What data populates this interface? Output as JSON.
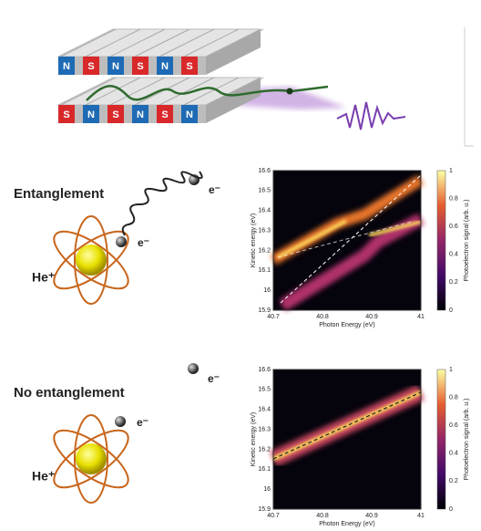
{
  "undulator": {
    "top_magnets": [
      "N",
      "S",
      "N",
      "S",
      "N",
      "S"
    ],
    "bottom_magnets": [
      "S",
      "N",
      "S",
      "N",
      "S",
      "N"
    ]
  },
  "panels": [
    {
      "label": "Entanglement",
      "electron_free": "e⁻",
      "electron_bound": "e⁻",
      "ion": "He⁺",
      "plot": {
        "ylabel": "Kinetic energy (eV)",
        "xlabel": "Photon Energy (eV)",
        "xticks": [
          "40.7",
          "40.8",
          "40.9",
          "41"
        ],
        "yticks": [
          "16.6",
          "16.5",
          "16.4",
          "16.3",
          "16.2",
          "16.1",
          "16",
          "15.9"
        ],
        "colorbar_label": "Photoelectron signal (arb. u.)",
        "colorbar_ticks": [
          "1",
          "0.8",
          "0.6",
          "0.4",
          "0.2",
          "0"
        ]
      }
    },
    {
      "label": "No entanglement",
      "electron_free": "e⁻",
      "electron_bound": "e⁻",
      "ion": "He⁺",
      "plot": {
        "ylabel": "Kinetic energy (eV)",
        "xlabel": "Photon Energy (eV)",
        "xticks": [
          "40.7",
          "40.8",
          "40.9",
          "41"
        ],
        "yticks": [
          "16.6",
          "16.5",
          "16.4",
          "16.3",
          "16.2",
          "16.1",
          "16",
          "15.9"
        ],
        "colorbar_label": "Photoelectron signal (arb. u.)",
        "colorbar_ticks": [
          "1",
          "0.8",
          "0.6",
          "0.4",
          "0.2",
          "0"
        ]
      }
    }
  ]
}
